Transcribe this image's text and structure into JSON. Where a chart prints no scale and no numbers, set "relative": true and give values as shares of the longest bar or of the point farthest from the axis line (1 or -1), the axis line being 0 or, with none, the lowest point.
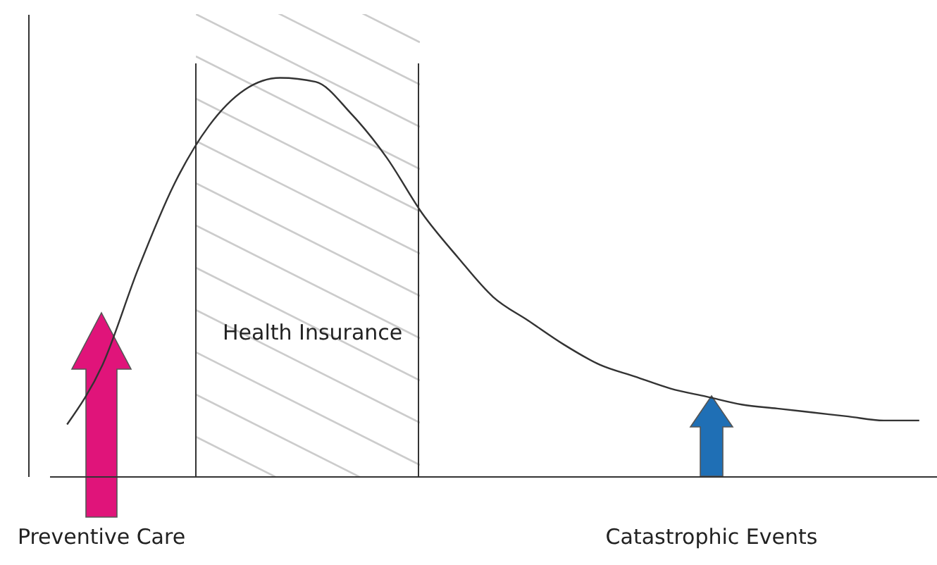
{
  "chart_data": {
    "type": "line",
    "relative": true,
    "color": "#333333",
    "categories": [
      null,
      null,
      null,
      null,
      null,
      null,
      null,
      null,
      null,
      null,
      null,
      null,
      null,
      null,
      null,
      null,
      null,
      null,
      null,
      null,
      null,
      null,
      null,
      null,
      null
    ],
    "values": [
      0.13,
      0.28,
      0.52,
      0.73,
      0.88,
      0.97,
      1.0,
      0.99,
      0.91,
      0.8,
      0.66,
      0.55,
      0.45,
      0.39,
      0.33,
      0.28,
      0.25,
      0.22,
      0.2,
      0.18,
      0.17,
      0.16,
      0.15,
      0.14,
      0.14
    ],
    "annotations": [
      "Health Insurance",
      "Preventive Care",
      "Catastrophic Events"
    ]
  }
}
